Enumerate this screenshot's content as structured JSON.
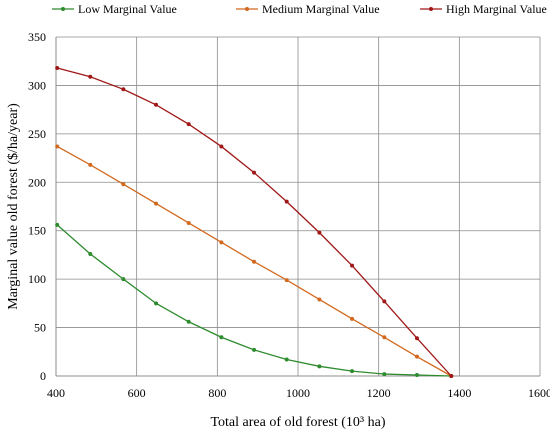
{
  "chart_data": {
    "type": "line",
    "title": "",
    "xlabel": "Total area of old forest (10³ ha)",
    "ylabel": "Marginal value old forest ($/ha/year)",
    "xlim": [
      400,
      1600
    ],
    "ylim": [
      0,
      350
    ],
    "x_ticks": [
      "400",
      "600",
      "800",
      "1000",
      "1200",
      "1400",
      "1600"
    ],
    "y_ticks": [
      "0",
      "50",
      "100",
      "150",
      "200",
      "250",
      "300",
      "350"
    ],
    "grid": true,
    "legend_position": "top",
    "series": [
      {
        "name": "Low Marginal Value",
        "color": "#2e8b2e",
        "x": [
          403,
          485,
          567,
          648,
          729,
          810,
          891,
          972,
          1053,
          1134,
          1214,
          1295,
          1380
        ],
        "y": [
          156,
          126,
          100,
          75,
          56,
          40,
          27,
          17,
          10,
          5,
          2,
          1,
          0
        ]
      },
      {
        "name": "Medium Marginal Value",
        "color": "#d2691e",
        "x": [
          403,
          485,
          567,
          648,
          729,
          810,
          891,
          972,
          1053,
          1134,
          1214,
          1295,
          1380
        ],
        "y": [
          237,
          218,
          198,
          178,
          158,
          138,
          118,
          99,
          79,
          59,
          40,
          20,
          0
        ]
      },
      {
        "name": "High Marginal Value",
        "color": "#a01818",
        "x": [
          403,
          485,
          567,
          648,
          729,
          810,
          891,
          972,
          1053,
          1134,
          1214,
          1295,
          1380
        ],
        "y": [
          318,
          309,
          296,
          280,
          260,
          237,
          210,
          180,
          148,
          114,
          77,
          39,
          0
        ]
      }
    ]
  }
}
